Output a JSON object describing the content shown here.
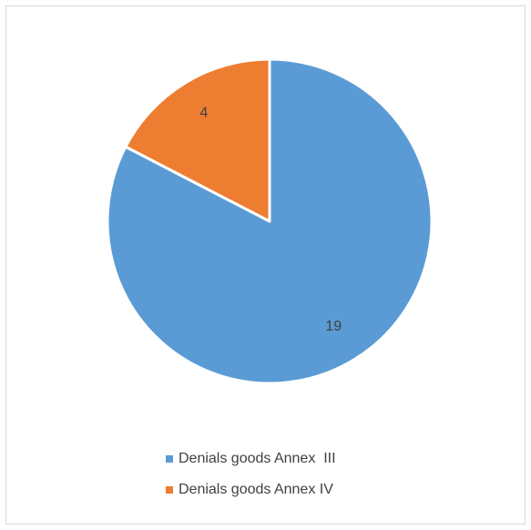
{
  "chart_data": {
    "type": "pie",
    "title": "",
    "categories": [
      "Denials goods Annex  III",
      "Denials goods Annex IV"
    ],
    "values": [
      19,
      4
    ],
    "colors": [
      "#5B9BD5",
      "#ED7D31"
    ],
    "data_labels": [
      "19",
      "4"
    ],
    "legend_position": "bottom",
    "start_angle_deg": 0,
    "direction": "clockwise"
  }
}
